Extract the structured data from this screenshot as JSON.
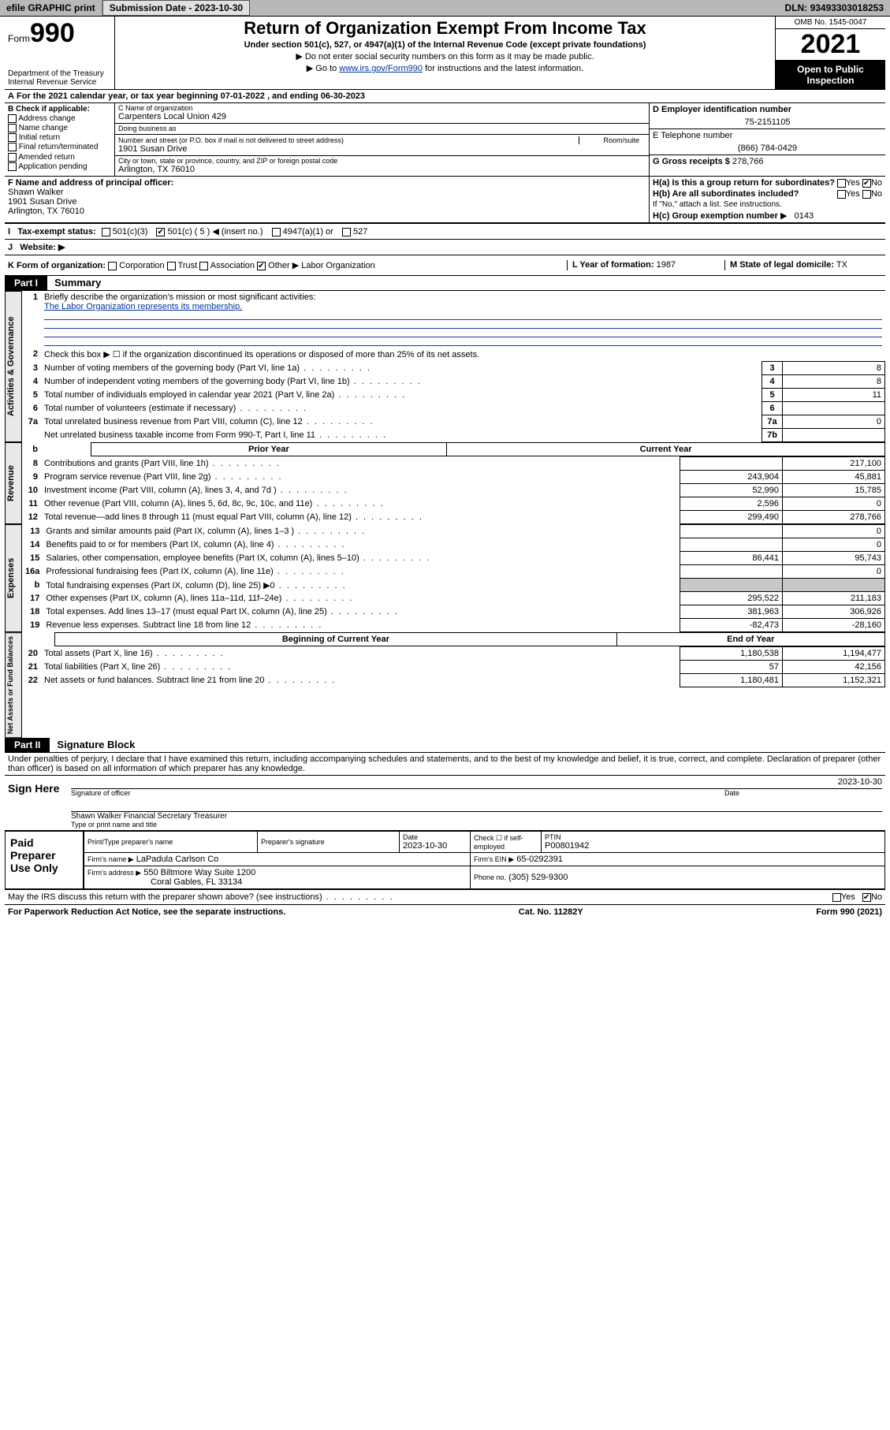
{
  "topbar": {
    "efile": "efile GRAPHIC print",
    "sub_label": "Submission Date -",
    "sub_date": "2023-10-30",
    "dln_label": "DLN:",
    "dln": "93493303018253"
  },
  "header": {
    "form_word": "Form",
    "form_num": "990",
    "dept": "Department of the Treasury",
    "irs": "Internal Revenue Service",
    "title": "Return of Organization Exempt From Income Tax",
    "subtitle": "Under section 501(c), 527, or 4947(a)(1) of the Internal Revenue Code (except private foundations)",
    "note1": "Do not enter social security numbers on this form as it may be made public.",
    "note2_pre": "Go to ",
    "note2_link": "www.irs.gov/Form990",
    "note2_post": " for instructions and the latest information.",
    "omb": "OMB No. 1545-0047",
    "year": "2021",
    "open1": "Open to Public",
    "open2": "Inspection"
  },
  "row_a": "For the 2021 calendar year, or tax year beginning 07-01-2022   , and ending 06-30-2023",
  "col_b": {
    "hdr": "B Check if applicable:",
    "items": [
      "Address change",
      "Name change",
      "Initial return",
      "Final return/terminated",
      "Amended return",
      "Application pending"
    ]
  },
  "box_c": {
    "name_lbl": "C Name of organization",
    "name": "Carpenters Local Union 429",
    "dba_lbl": "Doing business as",
    "dba": "",
    "addr_lbl": "Number and street (or P.O. box if mail is not delivered to street address)",
    "room_lbl": "Room/suite",
    "addr": "1901 Susan Drive",
    "city_lbl": "City or town, state or province, country, and ZIP or foreign postal code",
    "city": "Arlington, TX  76010"
  },
  "col_d": {
    "d_lbl": "D Employer identification number",
    "d_val": "75-2151105",
    "e_lbl": "E Telephone number",
    "e_val": "(866) 784-0429",
    "g_lbl": "G Gross receipts $",
    "g_val": "278,766"
  },
  "row_f": {
    "f_lbl": "F  Name and address of principal officer:",
    "f_name": "Shawn Walker",
    "f_addr1": "1901 Susan Drive",
    "f_addr2": "Arlington, TX  76010",
    "ha": "H(a)  Is this a group return for subordinates?",
    "ha_yes": "Yes",
    "ha_no": "No",
    "hb": "H(b)  Are all subordinates included?",
    "hb_yes": "Yes",
    "hb_no": "No",
    "hb_note": "If \"No,\" attach a list. See instructions.",
    "hc_lbl": "H(c)  Group exemption number",
    "hc_val": "0143"
  },
  "row_i": {
    "lbl": "Tax-exempt status:",
    "o1": "501(c)(3)",
    "o2": "501(c) ( 5 )",
    "o2_note": "(insert no.)",
    "o3": "4947(a)(1) or",
    "o4": "527"
  },
  "row_j": {
    "lbl": "Website:"
  },
  "row_k": {
    "k_lbl": "K Form of organization:",
    "k1": "Corporation",
    "k2": "Trust",
    "k3": "Association",
    "k4": "Other",
    "k4_val": "Labor Organization",
    "l_lbl": "L Year of formation:",
    "l_val": "1987",
    "m_lbl": "M State of legal domicile:",
    "m_val": "TX"
  },
  "part1": {
    "hdr": "Part I",
    "title": "Summary",
    "q1_lbl": "Briefly describe the organization's mission or most significant activities:",
    "q1_val": "The Labor Organization represents its membership.",
    "q2": "Check this box ▶ ☐  if the organization discontinued its operations or disposed of more than 25% of its net assets.",
    "side_ag": "Activities & Governance",
    "side_rev": "Revenue",
    "side_exp": "Expenses",
    "side_na": "Net Assets or Fund Balances",
    "col_prior": "Prior Year",
    "col_curr": "Current Year",
    "col_beg": "Beginning of Current Year",
    "col_end": "End of Year",
    "lines_top": [
      {
        "n": "3",
        "d": "Number of voting members of the governing body (Part VI, line 1a)",
        "box": "3",
        "v": "8"
      },
      {
        "n": "4",
        "d": "Number of independent voting members of the governing body (Part VI, line 1b)",
        "box": "4",
        "v": "8"
      },
      {
        "n": "5",
        "d": "Total number of individuals employed in calendar year 2021 (Part V, line 2a)",
        "box": "5",
        "v": "11"
      },
      {
        "n": "6",
        "d": "Total number of volunteers (estimate if necessary)",
        "box": "6",
        "v": ""
      },
      {
        "n": "7a",
        "d": "Total unrelated business revenue from Part VIII, column (C), line 12",
        "box": "7a",
        "v": "0"
      },
      {
        "n": "",
        "d": "Net unrelated business taxable income from Form 990-T, Part I, line 11",
        "box": "7b",
        "v": ""
      }
    ],
    "lines_rev": [
      {
        "n": "8",
        "d": "Contributions and grants (Part VIII, line 1h)",
        "p": "",
        "c": "217,100"
      },
      {
        "n": "9",
        "d": "Program service revenue (Part VIII, line 2g)",
        "p": "243,904",
        "c": "45,881"
      },
      {
        "n": "10",
        "d": "Investment income (Part VIII, column (A), lines 3, 4, and 7d )",
        "p": "52,990",
        "c": "15,785"
      },
      {
        "n": "11",
        "d": "Other revenue (Part VIII, column (A), lines 5, 6d, 8c, 9c, 10c, and 11e)",
        "p": "2,596",
        "c": "0"
      },
      {
        "n": "12",
        "d": "Total revenue—add lines 8 through 11 (must equal Part VIII, column (A), line 12)",
        "p": "299,490",
        "c": "278,766"
      }
    ],
    "lines_exp": [
      {
        "n": "13",
        "d": "Grants and similar amounts paid (Part IX, column (A), lines 1–3 )",
        "p": "",
        "c": "0"
      },
      {
        "n": "14",
        "d": "Benefits paid to or for members (Part IX, column (A), line 4)",
        "p": "",
        "c": "0"
      },
      {
        "n": "15",
        "d": "Salaries, other compensation, employee benefits (Part IX, column (A), lines 5–10)",
        "p": "86,441",
        "c": "95,743"
      },
      {
        "n": "16a",
        "d": "Professional fundraising fees (Part IX, column (A), line 11e)",
        "p": "",
        "c": "0"
      },
      {
        "n": "b",
        "d": "Total fundraising expenses (Part IX, column (D), line 25) ▶0",
        "p": "GRAY",
        "c": "GRAY"
      },
      {
        "n": "17",
        "d": "Other expenses (Part IX, column (A), lines 11a–11d, 11f–24e)",
        "p": "295,522",
        "c": "211,183"
      },
      {
        "n": "18",
        "d": "Total expenses. Add lines 13–17 (must equal Part IX, column (A), line 25)",
        "p": "381,963",
        "c": "306,926"
      },
      {
        "n": "19",
        "d": "Revenue less expenses. Subtract line 18 from line 12",
        "p": "-82,473",
        "c": "-28,160"
      }
    ],
    "lines_na": [
      {
        "n": "20",
        "d": "Total assets (Part X, line 16)",
        "p": "1,180,538",
        "c": "1,194,477"
      },
      {
        "n": "21",
        "d": "Total liabilities (Part X, line 26)",
        "p": "57",
        "c": "42,156"
      },
      {
        "n": "22",
        "d": "Net assets or fund balances. Subtract line 21 from line 20",
        "p": "1,180,481",
        "c": "1,152,321"
      }
    ]
  },
  "part2": {
    "hdr": "Part II",
    "title": "Signature Block",
    "decl": "Under penalties of perjury, I declare that I have examined this return, including accompanying schedules and statements, and to the best of my knowledge and belief, it is true, correct, and complete. Declaration of preparer (other than officer) is based on all information of which preparer has any knowledge.",
    "sign_here": "Sign Here",
    "sig_officer": "Signature of officer",
    "sig_date": "Date",
    "sig_date_val": "2023-10-30",
    "sig_name": "Shawn Walker  Financial Secretary Treasurer",
    "sig_name_lbl": "Type or print name and title",
    "paid": "Paid Preparer Use Only",
    "pp_name_lbl": "Print/Type preparer's name",
    "pp_sig_lbl": "Preparer's signature",
    "pp_date_lbl": "Date",
    "pp_date": "2023-10-30",
    "pp_check_lbl": "Check ☐ if self-employed",
    "pp_ptin_lbl": "PTIN",
    "pp_ptin": "P00801942",
    "firm_name_lbl": "Firm's name   ▶",
    "firm_name": "LaPadula Carlson Co",
    "firm_ein_lbl": "Firm's EIN ▶",
    "firm_ein": "65-0292391",
    "firm_addr_lbl": "Firm's address ▶",
    "firm_addr1": "550 Biltmore Way Suite 1200",
    "firm_addr2": "Coral Gables, FL  33134",
    "firm_phone_lbl": "Phone no.",
    "firm_phone": "(305) 529-9300",
    "discuss": "May the IRS discuss this return with the preparer shown above? (see instructions)",
    "yes": "Yes",
    "no": "No"
  },
  "footer": {
    "pra": "For Paperwork Reduction Act Notice, see the separate instructions.",
    "cat": "Cat. No. 11282Y",
    "form": "Form 990 (2021)"
  }
}
